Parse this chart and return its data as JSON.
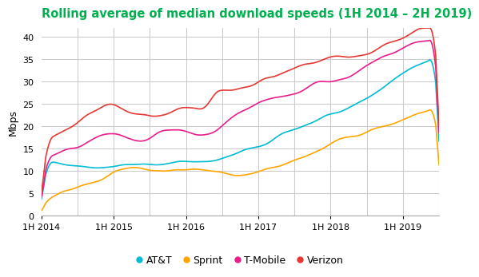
{
  "title": "Rolling average of median download speeds (1H 2014 – 2H 2019)",
  "title_color": "#00b050",
  "ylabel": "Mbps",
  "ylim": [
    0,
    42
  ],
  "yticks": [
    0,
    5,
    10,
    15,
    20,
    25,
    30,
    35,
    40
  ],
  "xtick_labels": [
    "1H 2014",
    "1H 2015",
    "1H 2016",
    "1H 2017",
    "1H 2018",
    "1H 2019"
  ],
  "n_points": 360,
  "background_color": "#ffffff",
  "grid_color": "#cccccc",
  "colors": {
    "ATT": "#00bcd4",
    "Sprint": "#ffa500",
    "TMobile": "#e91e8c",
    "Verizon": "#e53935"
  },
  "legend": [
    "AT&T",
    "Sprint",
    "T-Mobile",
    "Verizon"
  ]
}
